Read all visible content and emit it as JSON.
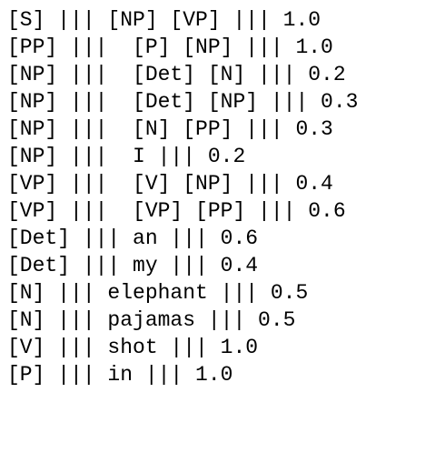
{
  "lines": [
    "[S] ||| [NP] [VP] ||| 1.0",
    "[PP] |||  [P] [NP] ||| 1.0",
    "[NP] |||  [Det] [N] ||| 0.2",
    "[NP] |||  [Det] [NP] ||| 0.3",
    "[NP] |||  [N] [PP] ||| 0.3",
    "[NP] |||  I ||| 0.2",
    "[VP] |||  [V] [NP] ||| 0.4",
    "[VP] |||  [VP] [PP] ||| 0.6",
    "[Det] ||| an ||| 0.6",
    "[Det] ||| my ||| 0.4",
    "[N] ||| elephant ||| 0.5",
    "[N] ||| pajamas ||| 0.5",
    "[V] ||| shot ||| 1.0",
    "[P] ||| in ||| 1.0"
  ]
}
